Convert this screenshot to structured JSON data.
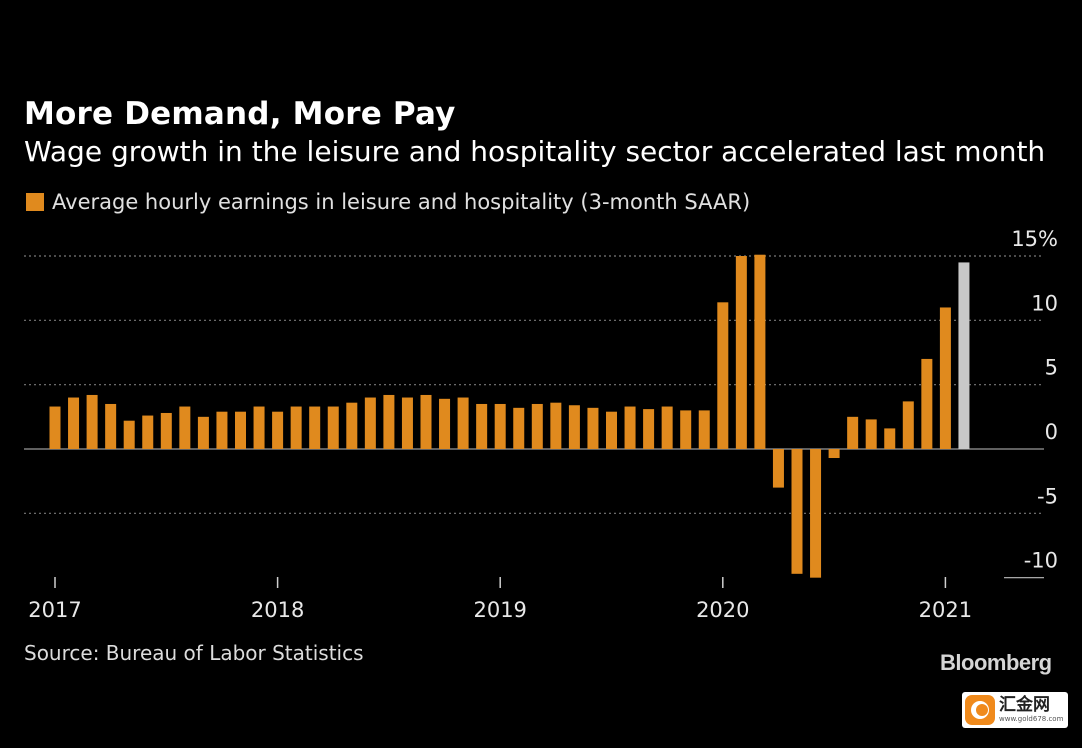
{
  "header": {
    "title": "More Demand, More Pay",
    "subtitle": "Wage growth in the leisure and hospitality sector accelerated last month"
  },
  "footer": {
    "source": "Source: Bureau of Labor Statistics",
    "brand": "Bloomberg"
  },
  "watermark": {
    "name": "汇金网",
    "url": "www.gold678.com"
  },
  "colors": {
    "background": "#000000",
    "bar": "#e08a1e",
    "bar_latest": "#c8c8c8",
    "grid": "#7a7a7a",
    "axis": "#9a9a9a"
  },
  "chart_data": {
    "type": "bar",
    "title": "More Demand, More Pay",
    "subtitle": "Wage growth in the leisure and hospitality sector accelerated last month",
    "legend": "Average hourly earnings in leisure and hospitality (3-month SAAR)",
    "legend_position": "top-left",
    "y_axis_side": "right",
    "grid": "dotted horizontal",
    "ylim": [
      -10,
      15
    ],
    "yticks": [
      15,
      10,
      5,
      0,
      -5,
      -10
    ],
    "ytick_labels": [
      "15%",
      "10",
      "5",
      "0",
      "-5",
      "-10"
    ],
    "x_start": "2017-01",
    "x_year_labels": [
      {
        "label": "2017",
        "index": 0
      },
      {
        "label": "2018",
        "index": 12
      },
      {
        "label": "2019",
        "index": 24
      },
      {
        "label": "2020",
        "index": 36
      },
      {
        "label": "2021",
        "index": 48
      }
    ],
    "highlight_last": true,
    "series": [
      {
        "name": "Average hourly earnings in leisure and hospitality (3-month SAAR)",
        "values": [
          3.3,
          4.0,
          4.2,
          3.5,
          2.2,
          2.6,
          2.8,
          3.3,
          2.5,
          2.9,
          2.9,
          3.3,
          2.9,
          3.3,
          3.3,
          3.3,
          3.6,
          4.0,
          4.2,
          4.0,
          4.2,
          3.9,
          4.0,
          3.5,
          3.5,
          3.2,
          3.5,
          3.6,
          3.4,
          3.2,
          2.9,
          3.3,
          3.1,
          3.3,
          3.0,
          3.0,
          11.4,
          15.0,
          15.1,
          -3.0,
          -9.7,
          -10.0,
          -0.7,
          2.5,
          2.3,
          1.6,
          3.7,
          7.0,
          11.0,
          14.5
        ]
      }
    ]
  }
}
